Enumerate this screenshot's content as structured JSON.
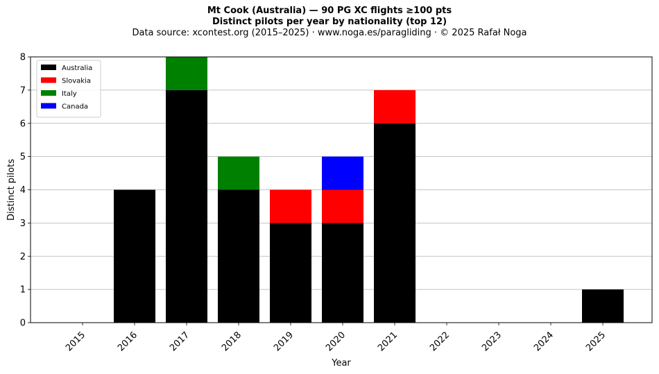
{
  "chart_data": {
    "type": "bar",
    "stacked": true,
    "title_line1": "Mt Cook (Australia)  —  90 PG XC flights ≥100 pts",
    "title_line2": "Distinct pilots per year by nationality (top 12)",
    "subtitle": "Data source: xcontest.org (2015–2025)  ·  www.noga.es/paragliding  ·  © 2025 Rafał Noga",
    "xlabel": "Year",
    "ylabel": "Distinct pilots",
    "ylim": [
      0,
      8
    ],
    "yticks": [
      0,
      1,
      2,
      3,
      4,
      5,
      6,
      7,
      8
    ],
    "grid": "horizontal",
    "legend_position": "top-left",
    "categories": [
      "2015",
      "2016",
      "2017",
      "2018",
      "2019",
      "2020",
      "2021",
      "2022",
      "2023",
      "2024",
      "2025"
    ],
    "series": [
      {
        "name": "Australia",
        "color": "#000000",
        "values": [
          0,
          4,
          7,
          4,
          3,
          3,
          6,
          0,
          0,
          0,
          1
        ]
      },
      {
        "name": "Slovakia",
        "color": "#ff0000",
        "values": [
          0,
          0,
          0,
          0,
          1,
          1,
          1,
          0,
          0,
          0,
          0
        ]
      },
      {
        "name": "Italy",
        "color": "#008000",
        "values": [
          0,
          0,
          1,
          1,
          0,
          0,
          0,
          0,
          0,
          0,
          0
        ]
      },
      {
        "name": "Canada",
        "color": "#0000ff",
        "values": [
          0,
          0,
          0,
          0,
          0,
          1,
          0,
          0,
          0,
          0,
          0
        ]
      }
    ]
  }
}
